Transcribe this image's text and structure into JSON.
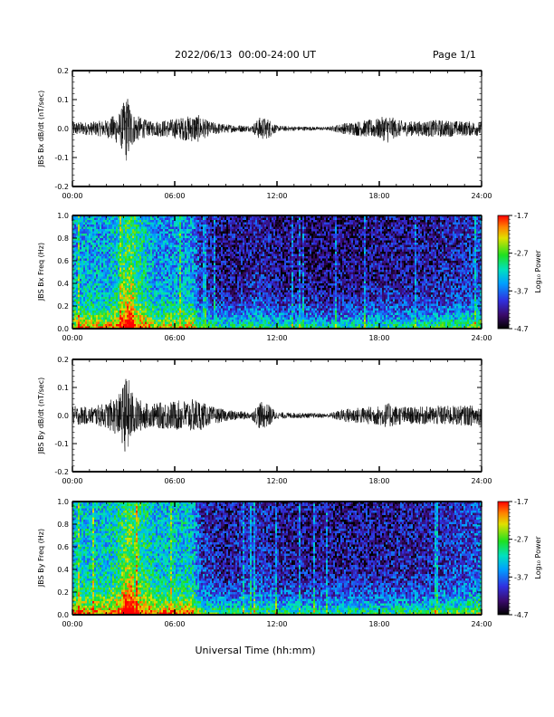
{
  "header": {
    "date_range": "2022/06/13  00:00-24:00 UT",
    "page": "Page 1/1"
  },
  "xlabel": "Universal Time (hh:mm)",
  "chart_data": [
    {
      "type": "line",
      "ylabel": "JBS Bx dB/dt (nT/sec)",
      "xlim": [
        "00:00",
        "24:00"
      ],
      "ylim": [
        -0.2,
        0.2
      ],
      "xticks": [
        "00:00",
        "06:00",
        "12:00",
        "18:00",
        "24:00"
      ],
      "yticks": [
        "0.2",
        "0.1",
        "0.0",
        "-0.1",
        "-0.2"
      ],
      "envelope_hours": [
        0,
        1,
        2,
        2.8,
        3.2,
        3.6,
        4.5,
        5.5,
        6.5,
        7.3,
        8,
        9,
        10.5,
        11,
        11.5,
        12,
        13,
        15,
        16,
        18,
        18.5,
        19,
        20,
        21.5,
        23,
        24
      ],
      "envelope_amplitude": [
        0.025,
        0.022,
        0.03,
        0.06,
        0.12,
        0.05,
        0.025,
        0.03,
        0.04,
        0.05,
        0.025,
        0.015,
        0.01,
        0.04,
        0.035,
        0.01,
        0.008,
        0.006,
        0.02,
        0.035,
        0.05,
        0.03,
        0.025,
        0.03,
        0.025,
        0.025
      ]
    },
    {
      "type": "heatmap",
      "ylabel": "JBS Bx Freq (Hz)",
      "xlim": [
        "00:00",
        "24:00"
      ],
      "ylim": [
        0.0,
        1.0
      ],
      "xticks": [
        "00:00",
        "06:00",
        "12:00",
        "18:00",
        "24:00"
      ],
      "yticks": [
        "1.0",
        "0.8",
        "0.6",
        "0.4",
        "0.2",
        "0.0"
      ],
      "colorbar": {
        "label": "Log₁₀ Power",
        "ticks": [
          "-1.7",
          "-2.7",
          "-3.7",
          "-4.7"
        ],
        "range": [
          -4.7,
          -1.7
        ]
      },
      "activity_hours": [
        0,
        2,
        3,
        3.5,
        5,
        7,
        7.6,
        9,
        11,
        12,
        15,
        18,
        21,
        23.5,
        24
      ],
      "activity_level": [
        0.55,
        0.55,
        0.7,
        0.8,
        0.5,
        0.55,
        0.25,
        0.18,
        0.25,
        0.18,
        0.15,
        0.2,
        0.22,
        0.3,
        0.4
      ]
    },
    {
      "type": "line",
      "ylabel": "JBS By dB/dt (nT/sec)",
      "xlim": [
        "00:00",
        "24:00"
      ],
      "ylim": [
        -0.2,
        0.2
      ],
      "xticks": [
        "00:00",
        "06:00",
        "12:00",
        "18:00",
        "24:00"
      ],
      "yticks": [
        "0.2",
        "0.1",
        "0.0",
        "-0.1",
        "-0.2"
      ],
      "envelope_hours": [
        0,
        1,
        2,
        2.8,
        3.2,
        3.6,
        4.5,
        5.5,
        6.5,
        7.3,
        8,
        9,
        10.5,
        11,
        11.5,
        12,
        13,
        15,
        16,
        18,
        18.5,
        19,
        20,
        21.5,
        23,
        24
      ],
      "envelope_amplitude": [
        0.035,
        0.03,
        0.045,
        0.08,
        0.15,
        0.07,
        0.04,
        0.05,
        0.055,
        0.06,
        0.035,
        0.02,
        0.012,
        0.05,
        0.04,
        0.012,
        0.01,
        0.008,
        0.025,
        0.035,
        0.045,
        0.035,
        0.03,
        0.035,
        0.035,
        0.04
      ]
    },
    {
      "type": "heatmap",
      "ylabel": "JBS By Freq (Hz)",
      "xlim": [
        "00:00",
        "24:00"
      ],
      "ylim": [
        0.0,
        1.0
      ],
      "xticks": [
        "00:00",
        "06:00",
        "12:00",
        "18:00",
        "24:00"
      ],
      "yticks": [
        "1.0",
        "0.8",
        "0.6",
        "0.4",
        "0.2",
        "0.0"
      ],
      "colorbar": {
        "label": "Log₁₀ Power",
        "ticks": [
          "-1.7",
          "-2.7",
          "-3.7",
          "-4.7"
        ],
        "range": [
          -4.7,
          -1.7
        ]
      },
      "activity_hours": [
        0,
        2,
        3,
        3.5,
        5,
        7,
        7.6,
        9,
        11,
        12,
        15,
        18,
        21,
        23.5,
        24
      ],
      "activity_level": [
        0.62,
        0.62,
        0.75,
        0.85,
        0.6,
        0.62,
        0.3,
        0.22,
        0.3,
        0.22,
        0.2,
        0.22,
        0.25,
        0.35,
        0.45
      ]
    }
  ]
}
